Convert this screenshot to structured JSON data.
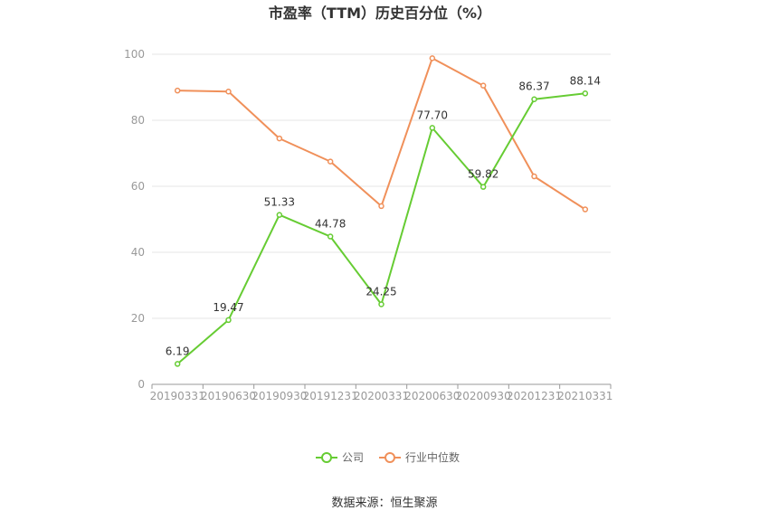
{
  "chart_data": {
    "type": "line",
    "title": "市盈率（TTM）历史百分位（%）",
    "categories": [
      "20190331",
      "20190630",
      "20190930",
      "20191231",
      "20200331",
      "20200630",
      "20200930",
      "20201231",
      "20210331"
    ],
    "series": [
      {
        "name": "公司",
        "color": "#66cc33",
        "values": [
          6.19,
          19.47,
          51.33,
          44.78,
          24.25,
          77.7,
          59.82,
          86.37,
          88.14
        ],
        "labels": [
          "6.19",
          "19.47",
          "51.33",
          "44.78",
          "24.25",
          "77.70",
          "59.82",
          "86.37",
          "88.14"
        ]
      },
      {
        "name": "行业中位数",
        "color": "#f0905a",
        "values": [
          89.0,
          88.7,
          74.5,
          67.5,
          54.0,
          98.8,
          90.5,
          63.0,
          53.0
        ]
      }
    ],
    "ylim": [
      0,
      100
    ],
    "yticks": [
      "0",
      "20",
      "40",
      "60",
      "80",
      "100"
    ],
    "grid": true,
    "legend": "bottom"
  },
  "source": "数据来源：恒生聚源"
}
